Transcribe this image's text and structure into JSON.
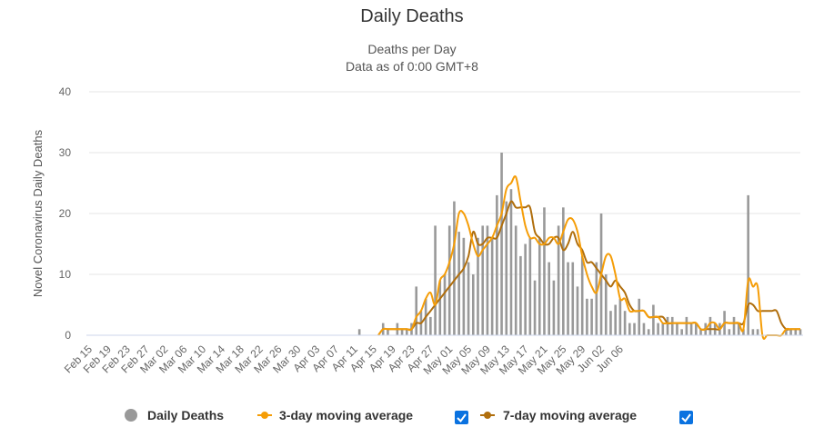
{
  "chart_data": {
    "type": "bar",
    "title": "Daily Deaths",
    "subtitle_lines": [
      "Deaths per Day",
      "Data as of 0:00 GMT+8"
    ],
    "ylabel": "Novel Coronavirus Daily Deaths",
    "xlabel": "",
    "ylim": [
      0,
      40
    ],
    "y_ticks": [
      0,
      10,
      20,
      30,
      40
    ],
    "grid": true,
    "legend_position": "bottom",
    "x_tick_labels": [
      "Feb 15",
      "Feb 19",
      "Feb 23",
      "Feb 27",
      "Mar 02",
      "Mar 06",
      "Mar 10",
      "Mar 14",
      "Mar 18",
      "Mar 22",
      "Mar 26",
      "Mar 30",
      "Apr 03",
      "Apr 07",
      "Apr 11",
      "Apr 15",
      "Apr 19",
      "Apr 23",
      "Apr 27",
      "May 01",
      "May 05",
      "May 09",
      "May 13",
      "May 17",
      "May 21",
      "May 25",
      "May 29",
      "Jun 02",
      "Jun 06"
    ],
    "x_start": "Feb 15",
    "x_end": "Jun 06",
    "series": [
      {
        "name": "Daily Deaths",
        "kind": "bar",
        "color": "#999999",
        "values": [
          0,
          0,
          0,
          0,
          0,
          0,
          0,
          0,
          0,
          0,
          0,
          0,
          0,
          0,
          0,
          0,
          0,
          0,
          0,
          0,
          0,
          0,
          0,
          0,
          0,
          0,
          0,
          0,
          0,
          0,
          0,
          0,
          0,
          0,
          0,
          0,
          0,
          0,
          0,
          0,
          0,
          0,
          0,
          0,
          0,
          0,
          0,
          0,
          0,
          0,
          0,
          0,
          0,
          0,
          0,
          0,
          0,
          1,
          0,
          0,
          0,
          0,
          2,
          1,
          0,
          2,
          1,
          1,
          2,
          8,
          4,
          6,
          3,
          18,
          9,
          10,
          18,
          22,
          17,
          16,
          12,
          10,
          16,
          18,
          18,
          16,
          23,
          30,
          22,
          24,
          18,
          13,
          15,
          16,
          9,
          16,
          21,
          12,
          9,
          18,
          21,
          12,
          12,
          8,
          13,
          6,
          6,
          12,
          20,
          10,
          4,
          5,
          6,
          4,
          2,
          2,
          6,
          2,
          1,
          5,
          2,
          2,
          3,
          3,
          2,
          1,
          3,
          2,
          2,
          1,
          2,
          3,
          2,
          2,
          4,
          1,
          3,
          2,
          1,
          23,
          1,
          1,
          0,
          0,
          0,
          0,
          0,
          1,
          1,
          1,
          1
        ]
      },
      {
        "name": "3-day moving average",
        "kind": "line",
        "color": "#f59d07",
        "visible": true,
        "values": [
          0,
          0,
          0,
          0,
          0,
          0,
          0,
          0,
          0,
          0,
          0,
          0,
          0,
          0,
          0,
          0,
          0,
          0,
          0,
          0,
          0,
          0,
          0,
          0,
          0,
          0,
          0,
          0,
          0,
          0,
          0,
          0,
          0,
          0,
          0,
          0,
          0,
          0,
          0,
          0,
          0,
          0,
          0,
          0,
          0,
          0,
          0,
          0,
          0,
          0,
          0,
          0,
          0,
          0,
          0,
          0,
          0,
          0,
          0,
          0,
          0,
          0,
          1,
          1,
          1,
          1,
          1,
          1,
          1,
          3,
          4,
          6,
          7,
          5,
          9,
          10,
          12,
          15,
          20,
          20,
          18,
          15,
          13,
          14,
          15,
          16,
          18,
          20,
          24,
          25,
          26,
          22,
          18,
          16,
          16,
          15,
          15,
          16,
          16,
          15,
          17,
          19,
          19,
          17,
          13,
          10,
          8,
          7,
          10,
          13,
          13,
          10,
          6,
          6,
          4,
          4,
          4,
          4,
          3,
          3,
          3,
          2,
          2,
          2,
          2,
          2,
          2,
          2,
          2,
          1,
          1,
          2,
          2,
          1,
          2,
          2,
          2,
          2,
          1,
          9,
          8,
          8,
          0,
          0,
          0,
          0,
          0,
          1,
          1,
          1,
          1
        ]
      },
      {
        "name": "7-day moving average",
        "kind": "line",
        "color": "#b06e0c",
        "visible": true,
        "values": [
          0,
          0,
          0,
          0,
          0,
          0,
          0,
          0,
          0,
          0,
          0,
          0,
          0,
          0,
          0,
          0,
          0,
          0,
          0,
          0,
          0,
          0,
          0,
          0,
          0,
          0,
          0,
          0,
          0,
          0,
          0,
          0,
          0,
          0,
          0,
          0,
          0,
          0,
          0,
          0,
          0,
          0,
          0,
          0,
          0,
          0,
          0,
          0,
          0,
          0,
          0,
          0,
          0,
          0,
          0,
          0,
          0,
          0,
          0,
          0,
          0,
          0,
          1,
          1,
          1,
          1,
          1,
          1,
          1,
          2,
          2,
          3,
          4,
          5,
          6,
          7,
          8,
          9,
          10,
          11,
          13,
          17,
          15,
          15,
          16,
          16,
          16,
          18,
          20,
          22,
          21,
          21,
          21,
          21,
          17,
          16,
          15,
          15,
          16,
          16,
          14,
          15,
          17,
          15,
          14,
          12,
          12,
          11,
          10,
          9,
          8,
          9,
          8,
          7,
          5,
          4,
          4,
          4,
          3,
          3,
          3,
          3,
          2,
          2,
          2,
          2,
          2,
          2,
          2,
          1,
          1,
          1,
          1,
          1,
          2,
          2,
          2,
          2,
          2,
          5,
          5,
          4,
          4,
          4,
          4,
          4,
          2,
          1,
          1,
          1,
          1
        ]
      }
    ]
  },
  "legend": {
    "items": [
      {
        "label": "Daily Deaths",
        "symbol": "circle",
        "color": "#999999"
      },
      {
        "label": "3-day moving average",
        "symbol": "line-marker",
        "color": "#f59d07",
        "checked": true
      },
      {
        "label": "7-day moving average",
        "symbol": "line-marker",
        "color": "#b06e0c",
        "checked": true
      }
    ],
    "checkbox_color": "#0a72e0"
  }
}
